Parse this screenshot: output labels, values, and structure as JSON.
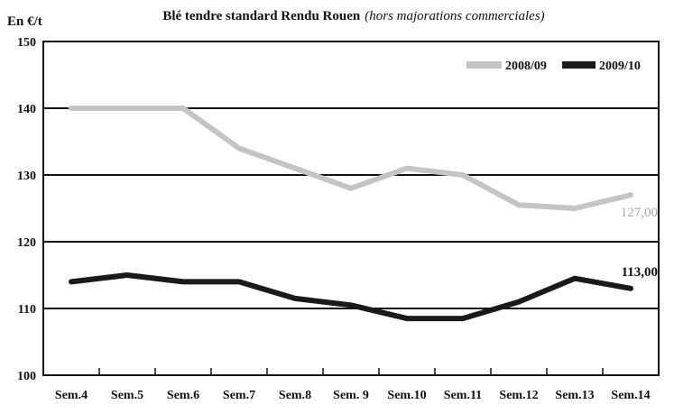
{
  "chart_data": {
    "type": "line",
    "title": "Blé tendre standard Rendu Rouen",
    "subtitle": "(hors majorations commerciales)",
    "ylabel": "En €/t",
    "xlabel": "",
    "ylim": [
      100,
      150
    ],
    "yticks": [
      100,
      110,
      120,
      130,
      140,
      150
    ],
    "grid": true,
    "legend": "top-right",
    "categories": [
      "Sem.4",
      "Sem.5",
      "Sem.6",
      "Sem.7",
      "Sem.8",
      "Sem. 9",
      "Sem.10",
      "Sem.11",
      "Sem.12",
      "Sem.13",
      "Sem.14"
    ],
    "series": [
      {
        "name": "2008/09",
        "color": "#c4c4c4",
        "values": [
          140,
          140,
          140,
          134,
          131,
          128,
          131,
          130,
          125.5,
          125,
          127
        ],
        "end_label": "127,00"
      },
      {
        "name": "2009/10",
        "color": "#1a1a1a",
        "values": [
          114,
          115,
          114,
          114,
          111.5,
          110.5,
          108.5,
          108.5,
          111,
          114.5,
          113
        ],
        "end_label": "113,00"
      }
    ]
  }
}
